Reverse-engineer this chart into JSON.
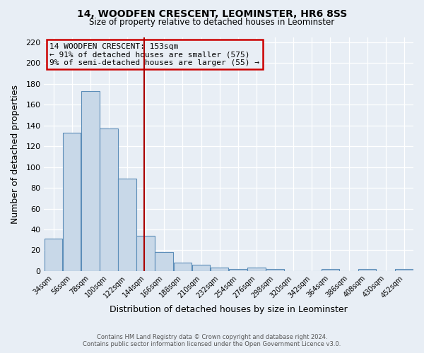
{
  "title": "14, WOODFEN CRESCENT, LEOMINSTER, HR6 8SS",
  "subtitle": "Size of property relative to detached houses in Leominster",
  "xlabel": "Distribution of detached houses by size in Leominster",
  "ylabel": "Number of detached properties",
  "bin_edges": [
    34,
    56,
    78,
    100,
    122,
    144,
    166,
    188,
    210,
    232,
    254,
    276,
    298,
    320,
    342,
    364,
    386,
    408,
    430,
    452,
    474
  ],
  "bar_heights": [
    31,
    133,
    173,
    137,
    89,
    34,
    18,
    8,
    6,
    3,
    2,
    3,
    2,
    0,
    0,
    2,
    0,
    2,
    0,
    2
  ],
  "bar_color": "#c8d8e8",
  "bar_edgecolor": "#5b8db8",
  "property_size": 153,
  "vline_color": "#aa0000",
  "annotation_title": "14 WOODFEN CRESCENT: 153sqm",
  "annotation_line1": "← 91% of detached houses are smaller (575)",
  "annotation_line2": "9% of semi-detached houses are larger (55) →",
  "annotation_box_edgecolor": "#cc0000",
  "ylim": [
    0,
    225
  ],
  "yticks": [
    0,
    20,
    40,
    60,
    80,
    100,
    120,
    140,
    160,
    180,
    200,
    220
  ],
  "footer_line1": "Contains HM Land Registry data © Crown copyright and database right 2024.",
  "footer_line2": "Contains public sector information licensed under the Open Government Licence v3.0.",
  "background_color": "#e8eef5",
  "title_fontsize": 10,
  "subtitle_fontsize": 8.5
}
